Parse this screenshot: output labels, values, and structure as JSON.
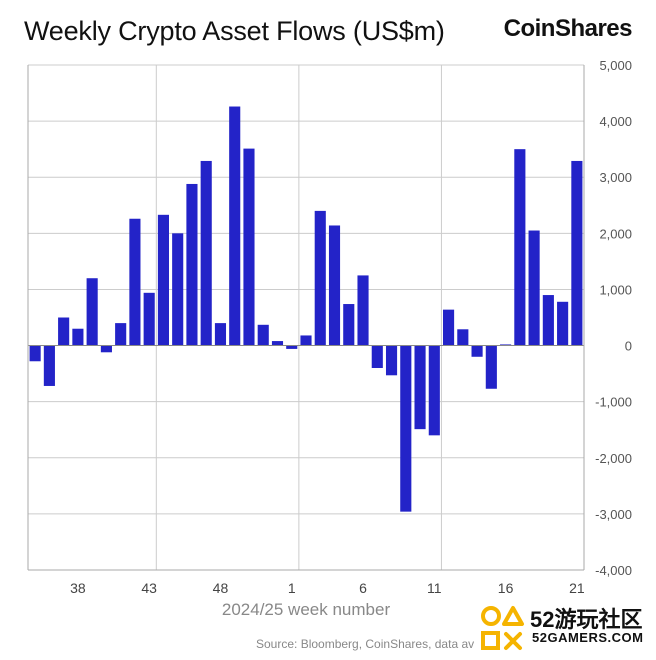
{
  "header": {
    "title": "Weekly Crypto Asset Flows (US$m)",
    "brand": "CoinShares"
  },
  "footer": {
    "source": "Source: Bloomberg, CoinShares, data av"
  },
  "watermark": {
    "text": "52游玩社区",
    "sub": "52GAMERS.COM"
  },
  "colors": {
    "bar": "#2323c8",
    "grid": "#cccccc",
    "axis": "#aaaaaa"
  },
  "chart_data": {
    "type": "bar",
    "title": "Weekly Crypto Asset Flows (US$m)",
    "xlabel": "2024/25 week number",
    "ylabel": "",
    "ylim": [
      -4000,
      5000
    ],
    "y_ticks": [
      5000,
      4000,
      3000,
      2000,
      1000,
      0,
      -1000,
      -2000,
      -3000,
      -4000
    ],
    "y_tick_labels": [
      "5,000",
      "4,000",
      "3,000",
      "2,000",
      "1,000",
      "0",
      "-1,000",
      "-2,000",
      "-3,000",
      "-4,000"
    ],
    "x_tick_labels": [
      "38",
      "43",
      "48",
      "1",
      "6",
      "11",
      "16",
      "21"
    ],
    "x_tick_bar_index": [
      3,
      8,
      13,
      18,
      23,
      28,
      33,
      38
    ],
    "x_gridline_bar_index": [
      9,
      19,
      29
    ],
    "y_axis_side": "right",
    "grid": true,
    "values": [
      -280,
      -720,
      500,
      300,
      1200,
      -120,
      400,
      2260,
      940,
      2330,
      2000,
      2880,
      3290,
      400,
      4260,
      3510,
      370,
      80,
      -60,
      180,
      2400,
      2140,
      740,
      1250,
      -400,
      -530,
      -2960,
      -1490,
      -1600,
      640,
      290,
      -200,
      -770,
      20,
      3500,
      2050,
      900,
      780,
      3290
    ]
  }
}
